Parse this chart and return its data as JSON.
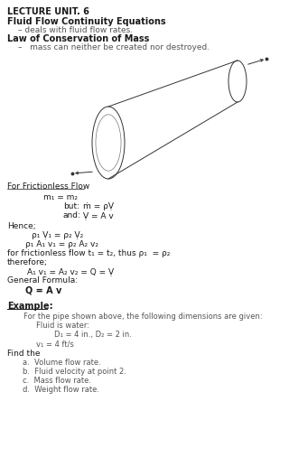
{
  "title": "LECTURE UNIT. 6",
  "subtitle": "Fluid Flow Continuity Equations",
  "subtitle_bullet": "  – deals with fluid flow rates.",
  "law_title": "Law of Conservation of Mass",
  "law_bullet": "    –   mass can neither be created nor destroyed.",
  "section1_title": "For Frictionless Flow",
  "bg_color": "#ffffff",
  "text_color": "#1a1a1a",
  "gray_color": "#555555",
  "dark_color": "#222222"
}
